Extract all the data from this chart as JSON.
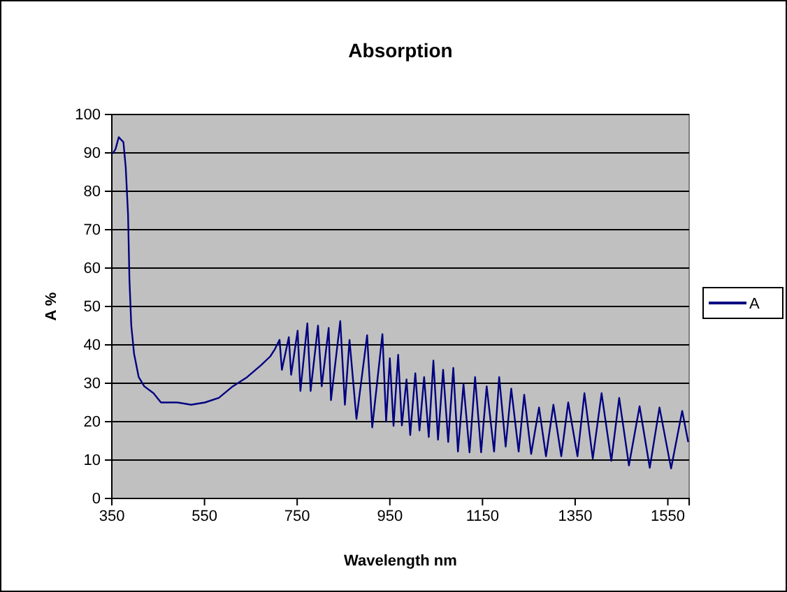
{
  "chart_data": {
    "type": "line",
    "title": "Absorption",
    "xlabel": "Wavelength nm",
    "ylabel": "A %",
    "xlim": [
      350,
      1596
    ],
    "xticks": [
      350,
      550,
      750,
      950,
      1150,
      1350,
      1550
    ],
    "ylim": [
      0,
      100
    ],
    "yticks": [
      0,
      10,
      20,
      30,
      40,
      50,
      60,
      70,
      80,
      90,
      100
    ],
    "grid": "y",
    "legend": "right",
    "series": [
      {
        "name": "A",
        "color": "#000080",
        "x": [
          352,
          358,
          365,
          375,
          380,
          385,
          388,
          392,
          398,
          408,
          420,
          440,
          456,
          491,
          521,
          551,
          581,
          611,
          642,
          672,
          692,
          702,
          712,
          717,
          732,
          737,
          751,
          757,
          772,
          779,
          795,
          803,
          818,
          823,
          843,
          853,
          863,
          878,
          901,
          912,
          934,
          942,
          950,
          958,
          968,
          976,
          986,
          994,
          1005,
          1014,
          1024,
          1034,
          1044,
          1054,
          1065,
          1076,
          1087,
          1097,
          1109,
          1122,
          1134,
          1147,
          1159,
          1175,
          1186,
          1200,
          1212,
          1228,
          1240,
          1255,
          1272,
          1287,
          1303,
          1320,
          1335,
          1355,
          1370,
          1388,
          1407,
          1428,
          1445,
          1466,
          1489,
          1511,
          1532,
          1557,
          1581,
          1594
        ],
        "values": [
          89.8,
          91,
          94.1,
          92.8,
          86.2,
          74,
          57,
          45,
          37.7,
          31.6,
          29.2,
          27.4,
          25,
          25,
          24.4,
          25,
          26.2,
          29.2,
          31.6,
          34.7,
          37,
          38.9,
          41.3,
          33.5,
          42,
          32.2,
          43.7,
          28,
          45.6,
          28,
          45,
          29.2,
          44.4,
          25.6,
          46.2,
          24.4,
          41.3,
          20.7,
          42.5,
          18.5,
          42.8,
          20,
          36.5,
          18.9,
          37.4,
          19,
          31,
          16.5,
          32.6,
          17.7,
          31.6,
          16,
          35.9,
          15.3,
          33.5,
          14.7,
          34,
          12.2,
          29.8,
          12,
          31.6,
          12,
          29.2,
          12.2,
          31.6,
          13.5,
          28.6,
          12.2,
          27,
          11.6,
          23.7,
          11,
          24.4,
          11,
          25,
          11,
          27.4,
          10.4,
          27.4,
          9.8,
          26.2,
          8.6,
          24,
          8,
          23.7,
          7.8,
          22.8,
          14.7
        ]
      }
    ]
  }
}
